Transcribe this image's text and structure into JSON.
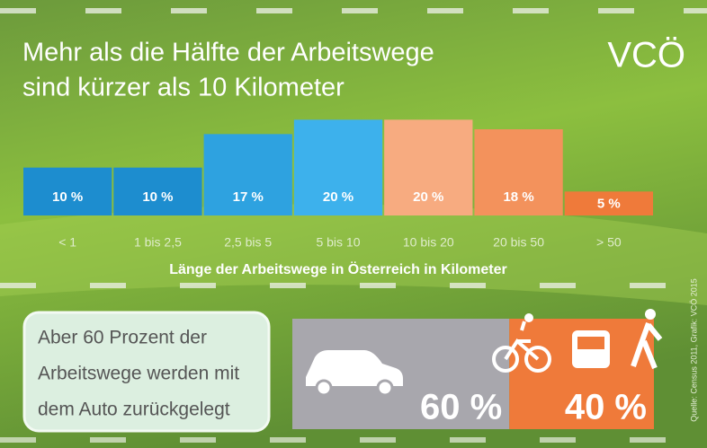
{
  "title_lines": [
    "Mehr als die Hälfte der Arbeitswege",
    "sind kürzer als 10 Kilometer"
  ],
  "logo": "VCÖ",
  "note_lines": [
    "Aber 60 Prozent der",
    "Arbeitswege werden mit",
    "dem Auto zurückgelegt"
  ],
  "source": "Quelle: Census 2011, Grafik: VCÖ 2015",
  "chart_data": [
    {
      "type": "bar",
      "categories": [
        "< 1",
        "1 bis 2,5",
        "2,5 bis 5",
        "5 bis 10",
        "10 bis 20",
        "20 bis 50",
        "> 50"
      ],
      "values": [
        10,
        10,
        17,
        20,
        20,
        18,
        5
      ],
      "value_labels": [
        "10 %",
        "10 %",
        "17 %",
        "20 %",
        "20 %",
        "18 %",
        "5 %"
      ],
      "colors": [
        "#1d8dcf",
        "#1d8dcf",
        "#2ea2e0",
        "#3db1ec",
        "#f7ab80",
        "#f3925c",
        "#ef7a3a"
      ],
      "x_label": "Länge der Arbeitswege in Österreich in Kilometer",
      "ylim": [
        0,
        21
      ]
    },
    {
      "type": "split-bar",
      "values": [
        60,
        40
      ],
      "value_labels": [
        "60 %",
        "40 %"
      ],
      "colors": [
        "#a8a7ad",
        "#ef7a3a"
      ]
    }
  ]
}
